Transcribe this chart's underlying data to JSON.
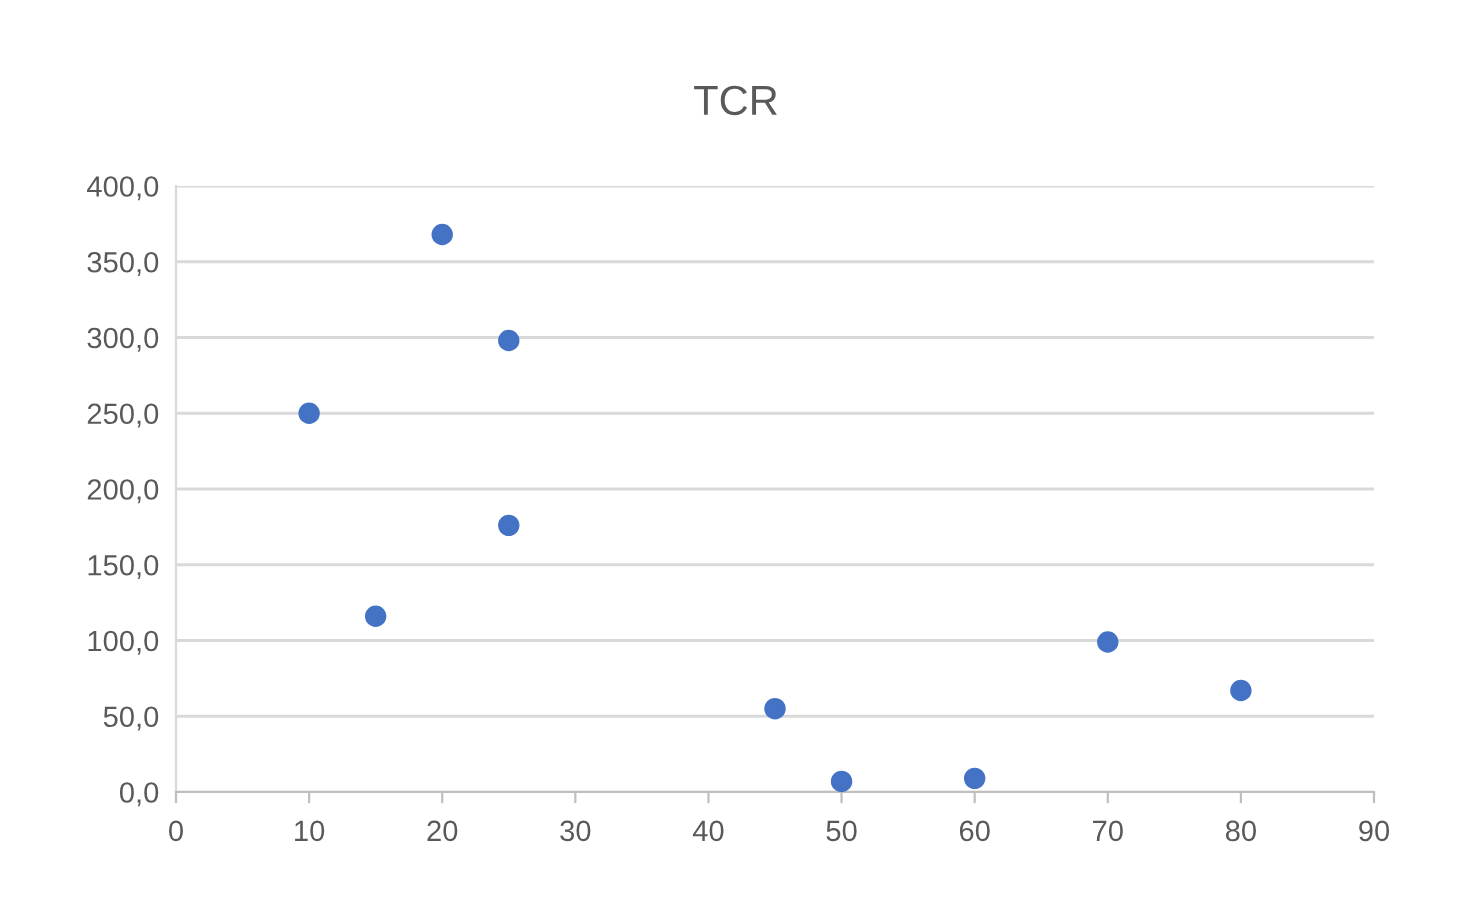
{
  "chart_data": {
    "type": "scatter",
    "title": "TCR",
    "x": [
      10,
      15,
      20,
      25,
      25,
      45,
      50,
      60,
      70,
      80
    ],
    "series": [
      {
        "color": "#4472c4",
        "values": [
          250,
          116,
          368,
          298,
          176,
          55,
          7,
          9,
          99,
          67
        ]
      }
    ],
    "xlim": [
      0,
      90
    ],
    "xticks": [
      0,
      10,
      20,
      30,
      40,
      50,
      60,
      70,
      80,
      90
    ],
    "ylim": [
      0,
      400
    ],
    "yticks": [
      {
        "value": 0,
        "label": "0,0"
      },
      {
        "value": 50,
        "label": "50,0"
      },
      {
        "value": 100,
        "label": "100,0"
      },
      {
        "value": 150,
        "label": "150,0"
      },
      {
        "value": 200,
        "label": "200,0"
      },
      {
        "value": 250,
        "label": "250,0"
      },
      {
        "value": 300,
        "label": "300,0"
      },
      {
        "value": 350,
        "label": "350,0"
      },
      {
        "value": 400,
        "label": "400,0"
      }
    ],
    "grid": "y",
    "marker": "circle"
  }
}
